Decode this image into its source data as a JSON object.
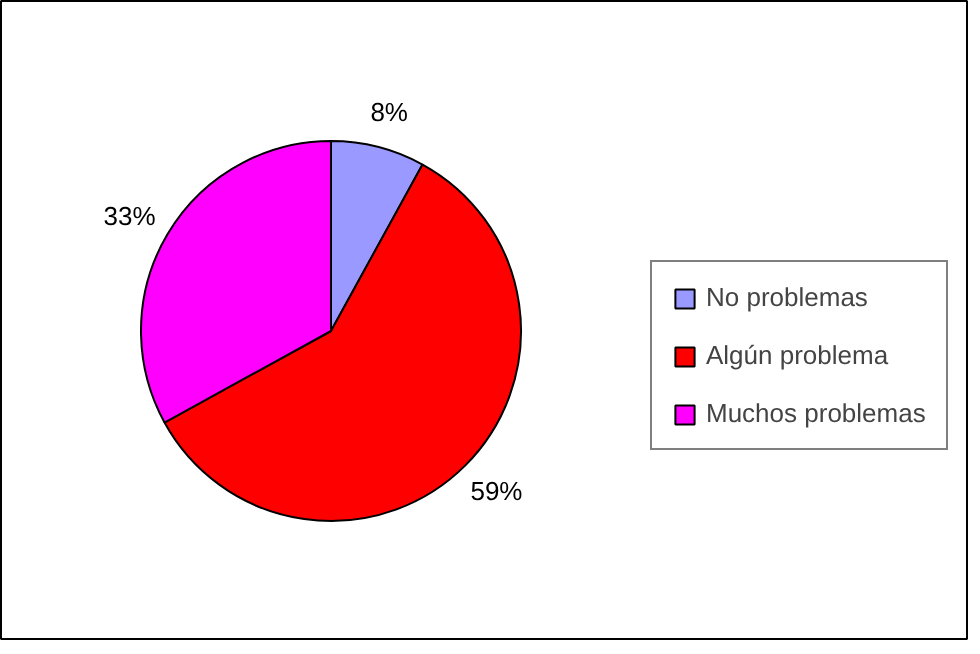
{
  "chart_data": {
    "type": "pie",
    "categories": [
      "No problemas",
      "Algún problema",
      "Muchos problemas"
    ],
    "values": [
      8,
      59,
      33
    ],
    "colors": [
      "#9999ff",
      "#ff0000",
      "#ff00ff"
    ],
    "value_labels": [
      "8%",
      "59%",
      "33%"
    ],
    "legend": "right"
  }
}
